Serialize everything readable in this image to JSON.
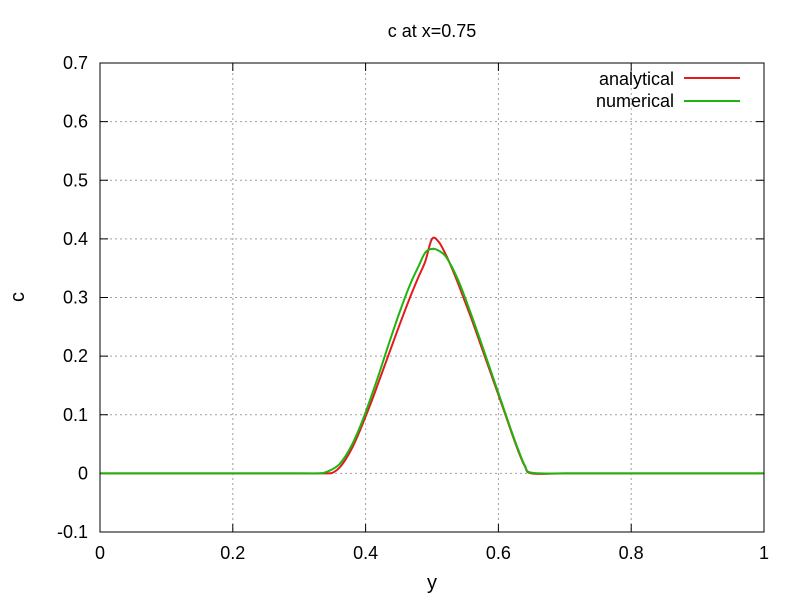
{
  "chart_data": {
    "type": "line",
    "title": "c at x=0.75",
    "xlabel": "y",
    "ylabel": "c",
    "xlim": [
      0,
      1
    ],
    "ylim": [
      -0.1,
      0.7
    ],
    "grid": true,
    "legend_position": "top-right",
    "x_ticks": [
      "0",
      "0.2",
      "0.4",
      "0.6",
      "0.8",
      "1"
    ],
    "y_ticks": [
      "-0.1",
      "0",
      "0.1",
      "0.2",
      "0.3",
      "0.4",
      "0.5",
      "0.6",
      "0.7"
    ],
    "x_tick_values": [
      0,
      0.2,
      0.4,
      0.6,
      0.8,
      1
    ],
    "y_tick_values": [
      -0.1,
      0,
      0.1,
      0.2,
      0.3,
      0.4,
      0.5,
      0.6,
      0.7
    ],
    "series": [
      {
        "name": "analytical",
        "color": "#e41a1c",
        "x": [
          0,
          0.1,
          0.2,
          0.3,
          0.34,
          0.35,
          0.36,
          0.37,
          0.38,
          0.39,
          0.4,
          0.41,
          0.42,
          0.43,
          0.44,
          0.45,
          0.46,
          0.47,
          0.48,
          0.49,
          0.5,
          0.51,
          0.52,
          0.53,
          0.54,
          0.55,
          0.56,
          0.57,
          0.58,
          0.59,
          0.6,
          0.61,
          0.62,
          0.63,
          0.64,
          0.65,
          0.7,
          0.8,
          0.9,
          1.0
        ],
        "y": [
          0,
          0,
          0,
          0,
          0,
          0.001,
          0.009,
          0.024,
          0.044,
          0.069,
          0.097,
          0.126,
          0.157,
          0.188,
          0.219,
          0.25,
          0.28,
          0.309,
          0.336,
          0.362,
          0.4,
          0.395,
          0.375,
          0.35,
          0.322,
          0.292,
          0.262,
          0.23,
          0.198,
          0.166,
          0.134,
          0.102,
          0.069,
          0.038,
          0.012,
          0,
          0,
          0,
          0,
          0
        ]
      },
      {
        "name": "numerical",
        "color": "#1fb50f",
        "x": [
          0,
          0.1,
          0.2,
          0.3,
          0.33,
          0.34,
          0.35,
          0.36,
          0.37,
          0.38,
          0.39,
          0.4,
          0.41,
          0.42,
          0.43,
          0.44,
          0.45,
          0.46,
          0.47,
          0.48,
          0.49,
          0.5,
          0.51,
          0.52,
          0.53,
          0.54,
          0.55,
          0.56,
          0.57,
          0.58,
          0.59,
          0.6,
          0.61,
          0.62,
          0.63,
          0.64,
          0.65,
          0.7,
          0.8,
          0.9,
          1.0
        ],
        "y": [
          0,
          0,
          0,
          0,
          0.0,
          0.002,
          0.007,
          0.015,
          0.03,
          0.05,
          0.075,
          0.104,
          0.136,
          0.169,
          0.204,
          0.238,
          0.271,
          0.302,
          0.33,
          0.354,
          0.377,
          0.383,
          0.38,
          0.371,
          0.352,
          0.328,
          0.299,
          0.268,
          0.236,
          0.203,
          0.17,
          0.137,
          0.104,
          0.071,
          0.04,
          0.013,
          0.001,
          0,
          0,
          0,
          0
        ]
      }
    ]
  }
}
